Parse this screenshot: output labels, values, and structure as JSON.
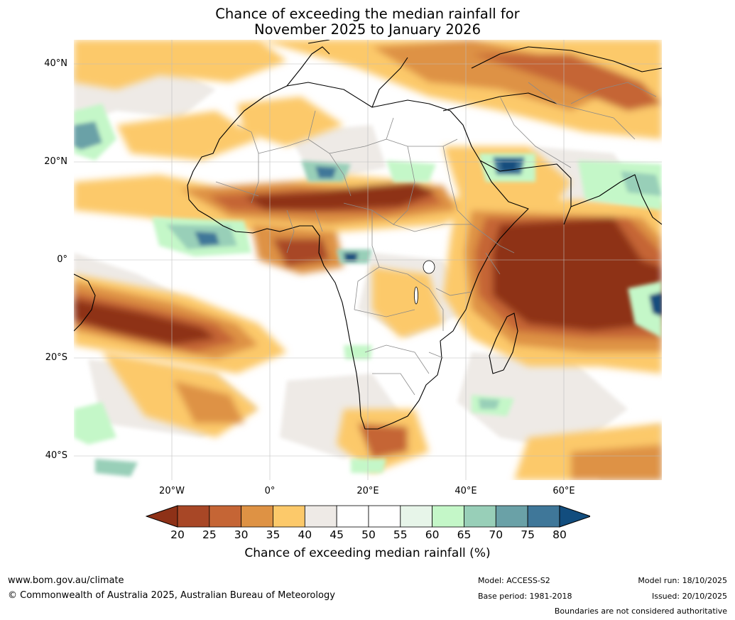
{
  "title": {
    "line1": "Chance of exceeding the median rainfall for",
    "line2": "November 2025 to January 2026"
  },
  "map": {
    "region": "Africa",
    "latitude_labels": [
      "40°N",
      "20°N",
      "0°",
      "20°S",
      "40°S"
    ],
    "longitude_labels": [
      "20°W",
      "0°",
      "20°E",
      "40°E",
      "60°E"
    ],
    "icons": [
      "coastline-icon",
      "country-boundary-icon",
      "lake-icon"
    ]
  },
  "legend": {
    "ticks": [
      "20",
      "25",
      "30",
      "35",
      "40",
      "45",
      "50",
      "55",
      "60",
      "65",
      "70",
      "75",
      "80"
    ],
    "colors": [
      "#8e3117",
      "#a84726",
      "#c56535",
      "#de9244",
      "#fcc96a",
      "#eeeae6",
      "#ffffff",
      "#ffffff",
      "#e7f5e9",
      "#c4f7c8",
      "#98cfb8",
      "#6aa1a7",
      "#3f7799",
      "#124d7e"
    ],
    "label": "Chance of exceeding median rainfall (%)"
  },
  "footer": {
    "website": "www.bom.gov.au/climate",
    "copyright": "© Commonwealth of Australia 2025, Australian Bureau of Meteorology",
    "model": "Model: ACCESS-S2",
    "base_period": "Base period: 1981-2018",
    "model_run": "Model run: 18/10/2025",
    "issued": "Issued: 20/10/2025",
    "disclaimer": "Boundaries are not considered authoritative"
  }
}
